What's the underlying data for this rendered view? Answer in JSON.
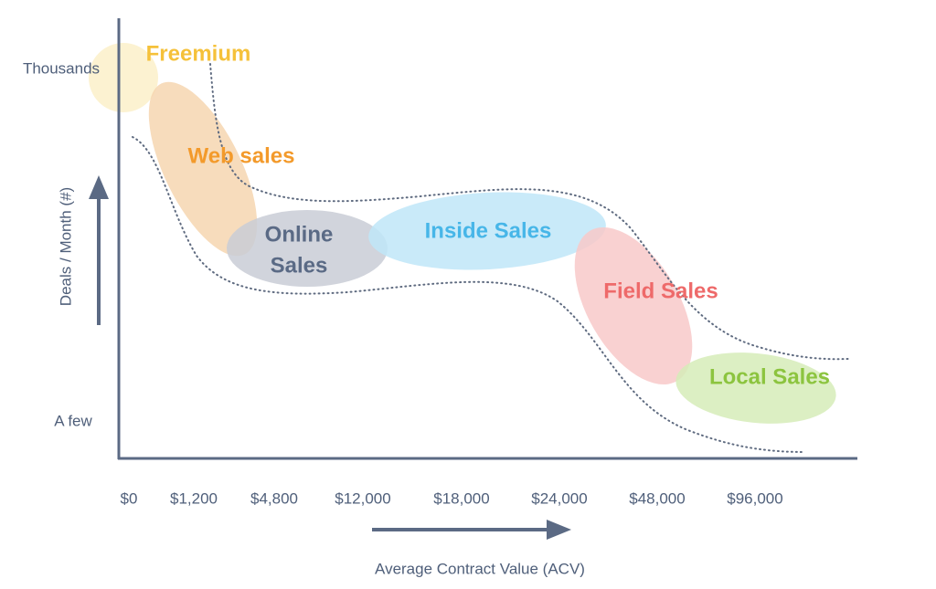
{
  "y_axis": {
    "label": "Deals / Month (#)",
    "top_label": "Thousands",
    "bottom_label": "A few"
  },
  "x_axis": {
    "label": "Average Contract Value (ACV)",
    "ticks": [
      "$0",
      "$1,200",
      "$4,800",
      "$12,000",
      "$18,000",
      "$24,000",
      "$48,000",
      "$96,000"
    ]
  },
  "segments": [
    {
      "lines": [
        "Freemium"
      ],
      "color": "#f5c13a",
      "fill": "#fbf0c9"
    },
    {
      "lines": [
        "Web sales"
      ],
      "color": "#f39a2b",
      "fill": "#f6d6b0"
    },
    {
      "lines": [
        "Online",
        "Sales"
      ],
      "color": "#5a6a85",
      "fill": "#c9ccd6"
    },
    {
      "lines": [
        "Inside Sales"
      ],
      "color": "#47b6e8",
      "fill": "#bfe6f8"
    },
    {
      "lines": [
        "Field Sales"
      ],
      "color": "#ee6a6a",
      "fill": "#f8c9c9"
    },
    {
      "lines": [
        "Local Sales"
      ],
      "color": "#8cc43f",
      "fill": "#d6ecb8"
    }
  ]
}
